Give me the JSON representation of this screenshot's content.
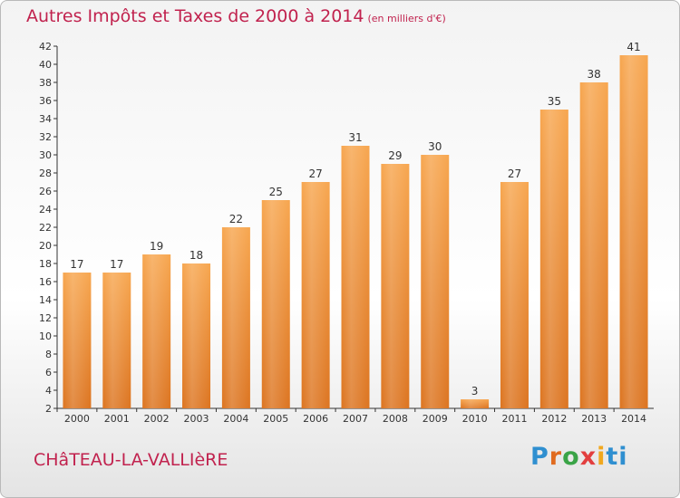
{
  "chart_data": {
    "type": "bar",
    "title": "Autres Impôts et Taxes de 2000 à 2014",
    "unit": "(en milliers d'€)",
    "categories": [
      "2000",
      "2001",
      "2002",
      "2003",
      "2004",
      "2005",
      "2006",
      "2007",
      "2008",
      "2009",
      "2010",
      "2011",
      "2012",
      "2013",
      "2014"
    ],
    "values": [
      17,
      17,
      19,
      18,
      22,
      25,
      27,
      31,
      29,
      30,
      3,
      27,
      35,
      38,
      41
    ],
    "ylim": [
      2,
      42
    ],
    "yticks": [
      2,
      4,
      6,
      8,
      10,
      12,
      14,
      16,
      18,
      20,
      22,
      24,
      26,
      28,
      30,
      32,
      34,
      36,
      38,
      40,
      42
    ],
    "grid": false,
    "bar_color_top": "#f7a64f",
    "bar_color_bottom": "#dc7420"
  },
  "commune": "CHâTEAU-LA-VALLIèRE",
  "logo": [
    "P",
    "r",
    "o",
    "x",
    "i",
    "ti"
  ]
}
